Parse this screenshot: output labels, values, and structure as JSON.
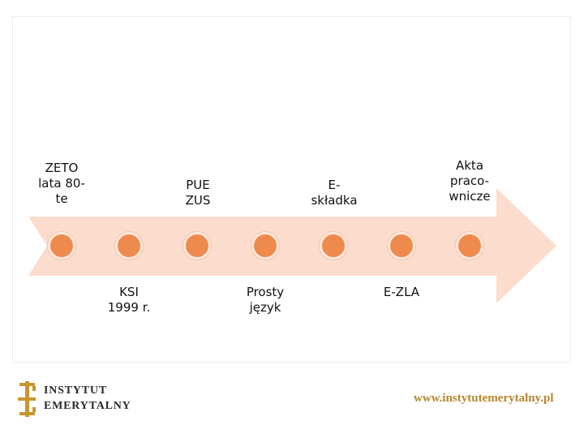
{
  "timeline": {
    "top_labels": [
      {
        "text": "ZETO\nlata 80-\nte"
      },
      {
        "text": "PUE\nZUS"
      },
      {
        "text": "E-\nskładka"
      },
      {
        "text": "Akta\npraco-\nwnicze"
      }
    ],
    "bottom_labels": [
      {
        "text": "KSI\n1999 r."
      },
      {
        "text": "Prosty\njęzyk"
      },
      {
        "text": "E-ZLA"
      }
    ],
    "dot_count": 7,
    "colors": {
      "arrow": "#fcdccd",
      "dot": "#ef8a4e"
    }
  },
  "footer": {
    "logo_line1": "INSTYTUT",
    "logo_line2": "EMERYTALNY",
    "url": "www.instytutemerytalny.pl"
  }
}
